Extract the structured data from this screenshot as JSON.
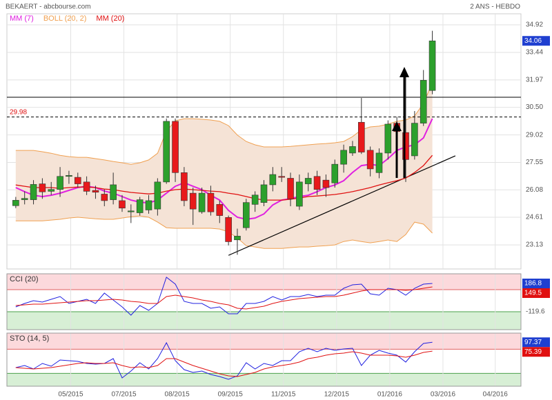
{
  "chart_data": {
    "type": "candlestick",
    "title": "BEKAERT - abcbourse.com",
    "subtitle": "2 ANS - HEBDO",
    "up_color": "#2ca02c",
    "down_color": "#e8191b",
    "x": [
      1,
      2,
      3,
      4,
      5,
      6,
      7,
      8,
      9,
      10,
      11,
      12,
      13,
      14,
      15,
      16,
      17,
      18,
      19,
      20,
      21,
      22,
      23,
      24,
      25,
      26,
      27,
      28,
      29,
      30,
      31,
      32,
      33,
      34,
      35,
      36,
      37,
      38,
      39,
      40,
      41,
      42,
      43,
      44,
      45,
      46,
      47,
      48
    ],
    "open": [
      25.23,
      25.55,
      25.55,
      26.4,
      26.0,
      26.1,
      26.8,
      26.75,
      26.5,
      26.05,
      25.85,
      25.55,
      25.5,
      24.9,
      24.85,
      25.0,
      25.05,
      26.5,
      29.75,
      27.0,
      25.9,
      24.9,
      25.9,
      25.3,
      24.6,
      23.4,
      24.05,
      25.3,
      25.4,
      26.35,
      26.8,
      26.7,
      25.2,
      26.4,
      26.8,
      26.6,
      26.45,
      27.45,
      28.05,
      29.7,
      28.2,
      27.0,
      28.05,
      29.65,
      29.15,
      27.9,
      29.65,
      31.4
    ],
    "high": [
      25.7,
      26.0,
      26.6,
      26.7,
      26.5,
      27.3,
      27.1,
      27.0,
      26.8,
      26.3,
      26.1,
      27.0,
      25.8,
      25.3,
      25.7,
      25.8,
      26.7,
      29.9,
      29.9,
      27.3,
      26.2,
      26.2,
      26.3,
      25.5,
      24.7,
      24.0,
      25.6,
      26.0,
      26.6,
      27.3,
      27.3,
      27.0,
      26.9,
      27.0,
      27.1,
      26.9,
      27.7,
      28.5,
      28.7,
      31.0,
      28.4,
      28.3,
      29.8,
      30.0,
      32.3,
      30.3,
      32.5,
      34.6
    ],
    "low": [
      25.1,
      25.3,
      25.3,
      25.6,
      25.8,
      25.7,
      26.4,
      26.2,
      25.8,
      25.6,
      25.2,
      25.3,
      24.9,
      24.3,
      24.7,
      24.8,
      24.7,
      26.4,
      26.5,
      25.2,
      24.2,
      24.8,
      24.7,
      24.3,
      23.1,
      22.6,
      23.9,
      24.9,
      25.2,
      26.0,
      26.5,
      25.2,
      25.0,
      26.0,
      25.8,
      25.7,
      26.2,
      27.0,
      27.9,
      28.0,
      26.8,
      26.7,
      27.7,
      28.5,
      26.5,
      27.7,
      29.5,
      31.2
    ],
    "close": [
      25.52,
      25.62,
      26.37,
      25.97,
      26.1,
      26.8,
      26.85,
      26.4,
      26.0,
      25.95,
      25.5,
      26.35,
      25.1,
      24.95,
      25.55,
      25.5,
      26.5,
      29.75,
      27.0,
      25.5,
      25.05,
      25.9,
      24.9,
      24.7,
      23.3,
      23.6,
      25.4,
      25.8,
      26.35,
      26.9,
      26.75,
      25.6,
      26.5,
      26.7,
      26.1,
      26.2,
      27.45,
      28.2,
      28.4,
      28.1,
      27.2,
      28.05,
      29.6,
      29.2,
      27.7,
      29.65,
      31.95,
      34.06
    ],
    "series": [
      {
        "name": "MM (7)",
        "color": "#e020e0",
        "values": [
          26.2,
          25.98,
          25.79,
          25.72,
          25.79,
          25.9,
          26.05,
          26.2,
          26.27,
          26.2,
          26.01,
          25.9,
          25.72,
          25.53,
          25.42,
          25.38,
          25.53,
          25.9,
          26.27,
          26.46,
          26.27,
          26.09,
          25.79,
          25.53,
          24.98,
          24.61,
          24.5,
          24.57,
          24.79,
          25.27,
          25.53,
          25.61,
          25.72,
          25.79,
          25.98,
          26.2,
          26.34,
          26.57,
          27.01,
          27.38,
          27.45,
          27.38,
          27.75,
          28.19,
          28.38,
          28.49,
          28.86,
          29.89
        ]
      },
      {
        "name": "BOLL (20, 2)",
        "color": "#f0a050",
        "fill": "#f5e3d6",
        "upper": [
          28.19,
          28.19,
          28.19,
          28.12,
          28.04,
          27.93,
          27.86,
          27.82,
          27.82,
          27.75,
          27.68,
          27.6,
          27.53,
          27.45,
          27.53,
          27.68,
          28.04,
          29.23,
          29.78,
          29.89,
          29.89,
          29.86,
          29.82,
          29.75,
          29.52,
          29.01,
          28.67,
          28.49,
          28.38,
          28.38,
          28.38,
          28.41,
          28.45,
          28.49,
          28.53,
          28.56,
          28.6,
          28.67,
          28.93,
          29.3,
          29.45,
          29.49,
          29.6,
          29.75,
          29.82,
          30.04,
          30.71,
          31.81
        ],
        "lower": [
          24.42,
          24.42,
          24.42,
          24.42,
          24.46,
          24.5,
          24.57,
          24.61,
          24.57,
          24.53,
          24.5,
          24.5,
          24.57,
          24.64,
          24.68,
          24.61,
          24.35,
          24.05,
          24.02,
          24.02,
          24.02,
          24.02,
          24.02,
          23.98,
          23.83,
          23.5,
          23.09,
          23.02,
          22.94,
          22.94,
          22.94,
          22.98,
          23.02,
          23.02,
          23.06,
          23.09,
          23.13,
          23.31,
          23.39,
          23.31,
          23.24,
          23.31,
          23.39,
          23.31,
          23.68,
          24.35,
          24.24,
          23.76
        ]
      },
      {
        "name": "MM (20)",
        "color": "#e01010",
        "values": [
          26.34,
          26.27,
          26.2,
          26.2,
          26.2,
          26.16,
          26.2,
          26.23,
          26.23,
          26.2,
          26.12,
          26.09,
          26.01,
          25.94,
          25.9,
          25.86,
          25.9,
          26.01,
          26.09,
          26.12,
          26.09,
          26.05,
          26.01,
          25.98,
          25.9,
          25.83,
          25.72,
          25.61,
          25.53,
          25.53,
          25.53,
          25.57,
          25.64,
          25.72,
          25.75,
          25.79,
          25.83,
          25.9,
          25.98,
          26.09,
          26.2,
          26.34,
          26.46,
          26.57,
          26.71,
          27.01,
          27.38,
          27.93
        ]
      }
    ],
    "levels": [
      31.04,
      29.98
    ],
    "trendline": {
      "x": [
        25.0,
        50.6
      ],
      "y": [
        22.57,
        27.9
      ]
    },
    "xlim": [
      0,
      58
    ],
    "xticks": [
      {
        "value": 7.2,
        "label": "05/2015"
      },
      {
        "value": 13.2,
        "label": "07/2015"
      },
      {
        "value": 19.2,
        "label": "08/2015"
      },
      {
        "value": 25.2,
        "label": "09/2015"
      },
      {
        "value": 31.2,
        "label": "11/2015"
      },
      {
        "value": 37.2,
        "label": "12/2015"
      },
      {
        "value": 43.2,
        "label": "01/2016"
      },
      {
        "value": 49.2,
        "label": "03/2016"
      },
      {
        "value": 55.1,
        "label": "04/2016"
      }
    ],
    "ylim": [
      21.84,
      35.51
    ],
    "yticks": [
      34.92,
      33.44,
      31.97,
      {
        "value": 30.5,
        "label": "30.50"
      },
      29.02,
      27.55,
      26.08,
      24.61,
      23.13
    ],
    "grid": true,
    "indicators": [
      {
        "type": "line",
        "name": "CCI (20)",
        "ylim": [
          -314,
          291.5
        ],
        "yticks": [
          -119.6,
          119.6
        ],
        "zones": [
          -119.6,
          119.6
        ],
        "lines": [
          {
            "color": "#2020e0",
            "values": [
              -67.3,
              -29.9,
              0,
              -15,
              15,
              44.9,
              -29.9,
              -7.5,
              15,
              -29.9,
              82.2,
              7.5,
              -67.3,
              -157,
              -52.3,
              -104.7,
              -29.9,
              254.2,
              179.4,
              -7.5,
              -29.9,
              -29.9,
              -82.2,
              -67.3,
              -142,
              -142,
              -29.9,
              -29.9,
              -7.5,
              44.9,
              7.5,
              44.9,
              44.9,
              67.3,
              44.9,
              59.8,
              59.8,
              134.6,
              171.9,
              179.4,
              74.8,
              59.8,
              134.6,
              119.6,
              59.8,
              134.6,
              179.4,
              186.8
            ]
          },
          {
            "color": "#e01010",
            "values": [
              -52.3,
              -44.9,
              -37.4,
              -37.4,
              -29.9,
              -22.4,
              -15,
              -7.5,
              0,
              0,
              7.5,
              15,
              7.5,
              -7.5,
              -15,
              -29.9,
              -29.9,
              44.9,
              59.8,
              44.9,
              29.9,
              7.5,
              -7.5,
              -29.9,
              -44.9,
              -82.2,
              -89.7,
              -74.8,
              -59.8,
              -29.9,
              -7.5,
              7.5,
              22.4,
              29.9,
              37.4,
              44.9,
              44.9,
              59.8,
              82.2,
              104.7,
              119.6,
              119.6,
              119.6,
              119.6,
              112.1,
              119.6,
              134.6,
              149.5
            ]
          }
        ]
      },
      {
        "type": "line",
        "name": "STO (14, 5)",
        "ylim": [
          -12,
          120.1
        ],
        "zones": [
          20,
          80
        ],
        "lines": [
          {
            "color": "#2020e0",
            "values": [
              34.3,
              39.5,
              30.9,
              44.6,
              37.7,
              53.2,
              51.5,
              49.7,
              44.6,
              42.9,
              44.6,
              56.6,
              8.6,
              25.7,
              46.3,
              30.9,
              56.6,
              96.1,
              51.5,
              29.2,
              22.3,
              25.7,
              17.2,
              12.0,
              5.1,
              13.7,
              46.3,
              30.9,
              44.6,
              39.5,
              51.5,
              51.5,
              73.8,
              82.3,
              73.8,
              82.3,
              77.2,
              80.6,
              82.3,
              39.5,
              65.2,
              77.2,
              70.3,
              65.2,
              48.0,
              73.8,
              94.3,
              97.37
            ]
          },
          {
            "color": "#e01010",
            "values": [
              34.3,
              32.6,
              30.9,
              32.6,
              34.3,
              37.7,
              41.2,
              44.6,
              46.3,
              44.6,
              44.6,
              46.3,
              39.5,
              34.3,
              36.0,
              34.3,
              39.5,
              56.6,
              56.6,
              48.0,
              39.5,
              32.6,
              25.7,
              18.9,
              13.7,
              12.0,
              17.2,
              22.3,
              30.9,
              36.0,
              39.5,
              42.9,
              48.0,
              56.6,
              60.0,
              65.2,
              68.6,
              70.3,
              73.8,
              70.3,
              65.2,
              65.2,
              65.2,
              63.5,
              60.0,
              65.2,
              72.0,
              75.39
            ]
          }
        ]
      }
    ]
  }
}
